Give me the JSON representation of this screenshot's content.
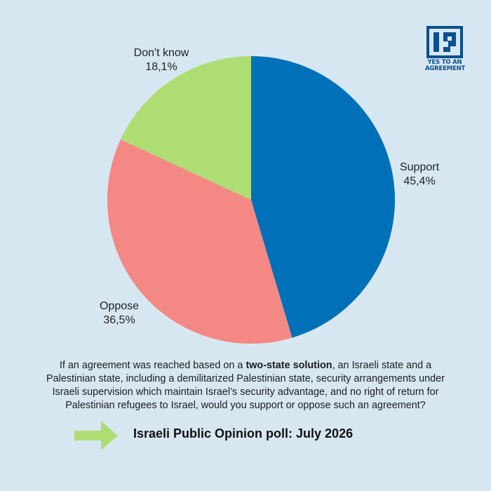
{
  "chart_data": {
    "type": "pie",
    "slices": [
      {
        "label": "Support",
        "value": 45.4,
        "value_text": "45,4%",
        "color": "#0070b8"
      },
      {
        "label": "Oppose",
        "value": 36.5,
        "value_text": "36,5%",
        "color": "#f48884"
      },
      {
        "label": "Don't know",
        "value": 18.1,
        "value_text": "18,1%",
        "color": "#aedd74"
      }
    ],
    "start_angle_deg": 0,
    "direction": "clockwise"
  },
  "logo": {
    "text_line1": "YES TO AN",
    "text_line2": "AGREEMENT",
    "color": "#0a4f8f",
    "icon": "yes-to-agreement-logo-icon"
  },
  "question": {
    "before": "If an agreement was reached based on a ",
    "bold": "two-state solution",
    "after": ", an Israeli state and a Palestinian state, including a demilitarized Palestinian state, security arrangements under Israeli supervision which maintain Israel’s security advantage, and no right of return for Palestinian refugees to Israel, would you support or oppose such an agreement?"
  },
  "footer": {
    "title": "Israeli Public Opinion poll: July 2026",
    "arrow_icon": "right-arrow-icon",
    "arrow_color": "#aedd74"
  },
  "background": "#d6e7f2"
}
